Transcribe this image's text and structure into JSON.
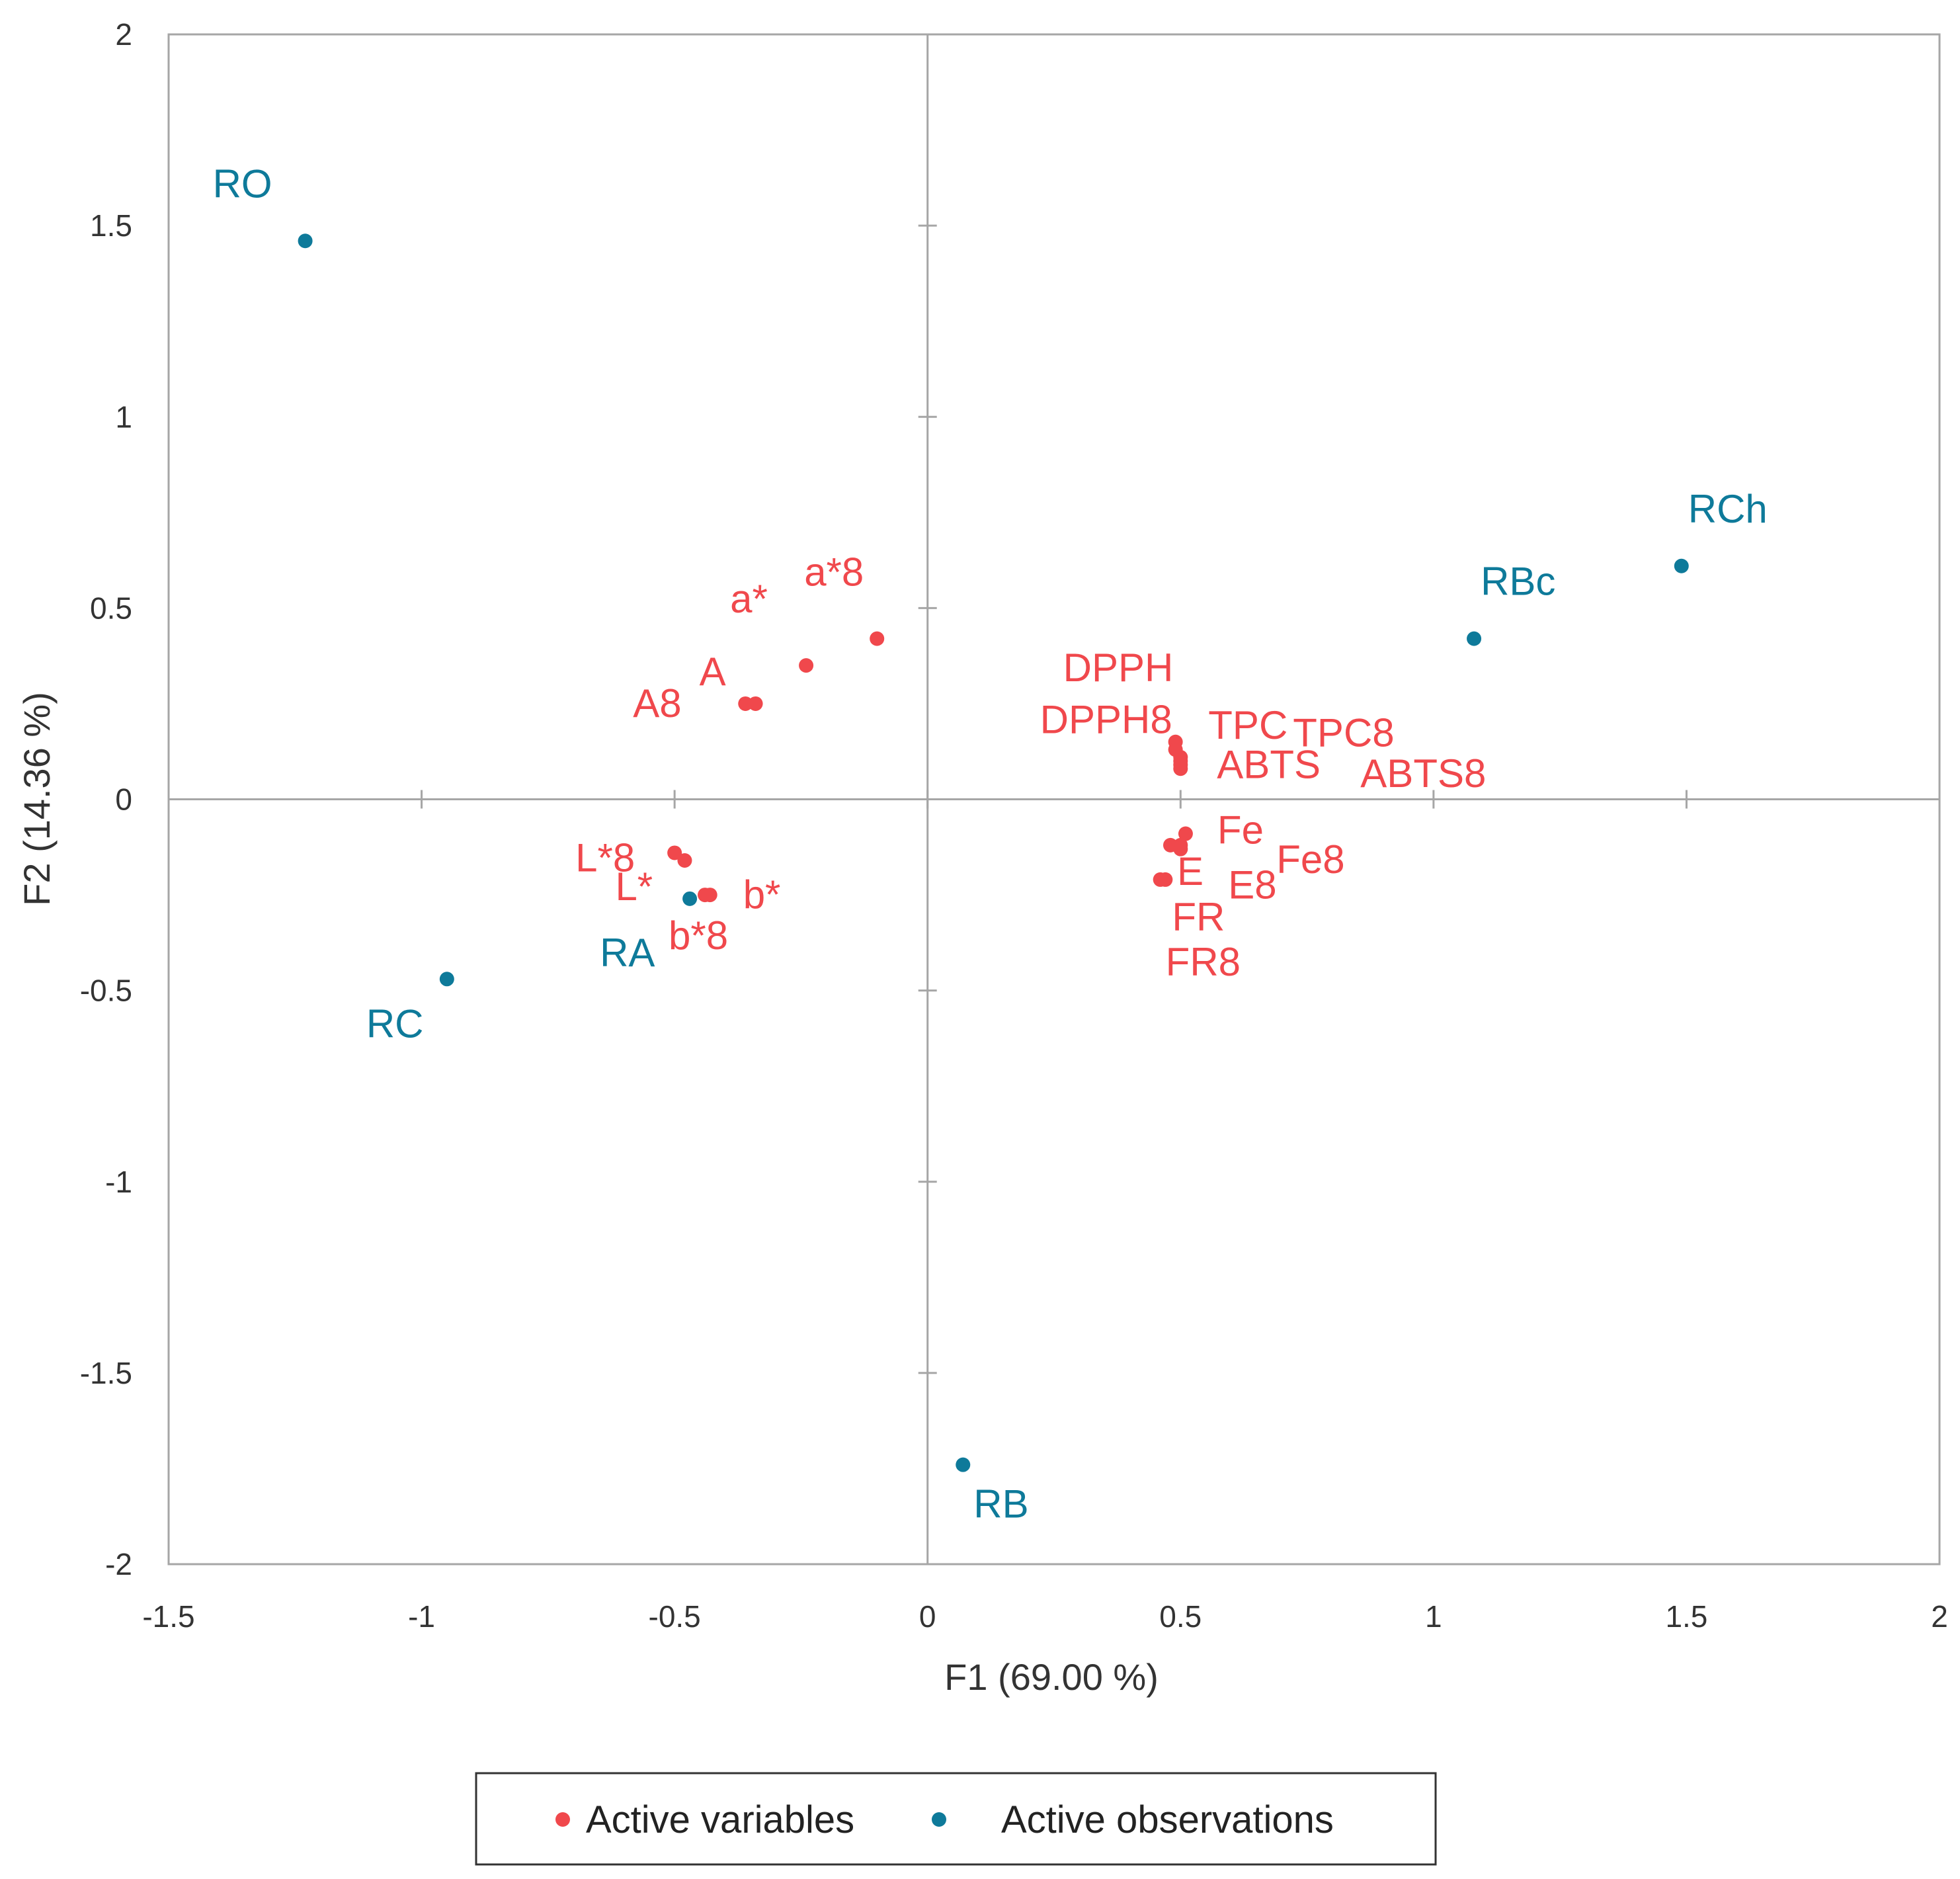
{
  "chart_data": {
    "type": "scatter",
    "xlabel": "F1 (69.00 %)",
    "ylabel": "F2 (14.36 %)",
    "xlim": [
      -1.5,
      2
    ],
    "ylim": [
      -2,
      2
    ],
    "xticks": [
      "-1.5",
      "-1",
      "-0.5",
      "0",
      "0.5",
      "1",
      "1.5",
      "2"
    ],
    "yticks": [
      "-2",
      "-1.5",
      "-1",
      "-0.5",
      "0",
      "0.5",
      "1",
      "1.5",
      "2"
    ],
    "grid": false,
    "legend_position": "bottom",
    "colors": {
      "variables": "#f0484c",
      "observations": "#0e7a9a"
    },
    "series": [
      {
        "name": "Active variables",
        "color": "#f0484c",
        "points": [
          {
            "label": "a*8",
            "x": -0.1,
            "y": 0.42
          },
          {
            "label": "a*",
            "x": -0.24,
            "y": 0.35
          },
          {
            "label": "A",
            "x": -0.34,
            "y": 0.25
          },
          {
            "label": "A8",
            "x": -0.36,
            "y": 0.25
          },
          {
            "label": "L*8",
            "x": -0.5,
            "y": -0.14
          },
          {
            "label": "L*",
            "x": -0.48,
            "y": -0.16
          },
          {
            "label": "b*",
            "x": -0.43,
            "y": -0.25
          },
          {
            "label": "b*8",
            "x": -0.44,
            "y": -0.25
          },
          {
            "label": "DPPH",
            "x": 0.49,
            "y": 0.15
          },
          {
            "label": "DPPH8",
            "x": 0.49,
            "y": 0.13
          },
          {
            "label": "TPC",
            "x": 0.5,
            "y": 0.11
          },
          {
            "label": "TPC8",
            "x": 0.5,
            "y": 0.1
          },
          {
            "label": "ABTS",
            "x": 0.5,
            "y": 0.09
          },
          {
            "label": "ABTS8",
            "x": 0.5,
            "y": 0.08
          },
          {
            "label": "Fe",
            "x": 0.51,
            "y": -0.09
          },
          {
            "label": "Fe8",
            "x": 0.5,
            "y": -0.12
          },
          {
            "label": "E",
            "x": 0.48,
            "y": -0.12
          },
          {
            "label": "E8",
            "x": 0.5,
            "y": -0.13
          },
          {
            "label": "FR",
            "x": 0.47,
            "y": -0.21
          },
          {
            "label": "FR8",
            "x": 0.46,
            "y": -0.21
          }
        ]
      },
      {
        "name": "Active observations",
        "color": "#0e7a9a",
        "points": [
          {
            "label": "RO",
            "x": -1.23,
            "y": 1.46
          },
          {
            "label": "RCh",
            "x": 1.49,
            "y": 0.61
          },
          {
            "label": "RBc",
            "x": 1.08,
            "y": 0.42
          },
          {
            "label": "RA",
            "x": -0.47,
            "y": -0.26
          },
          {
            "label": "RC",
            "x": -0.95,
            "y": -0.47
          },
          {
            "label": "RB",
            "x": 0.07,
            "y": -1.74
          }
        ]
      }
    ]
  }
}
